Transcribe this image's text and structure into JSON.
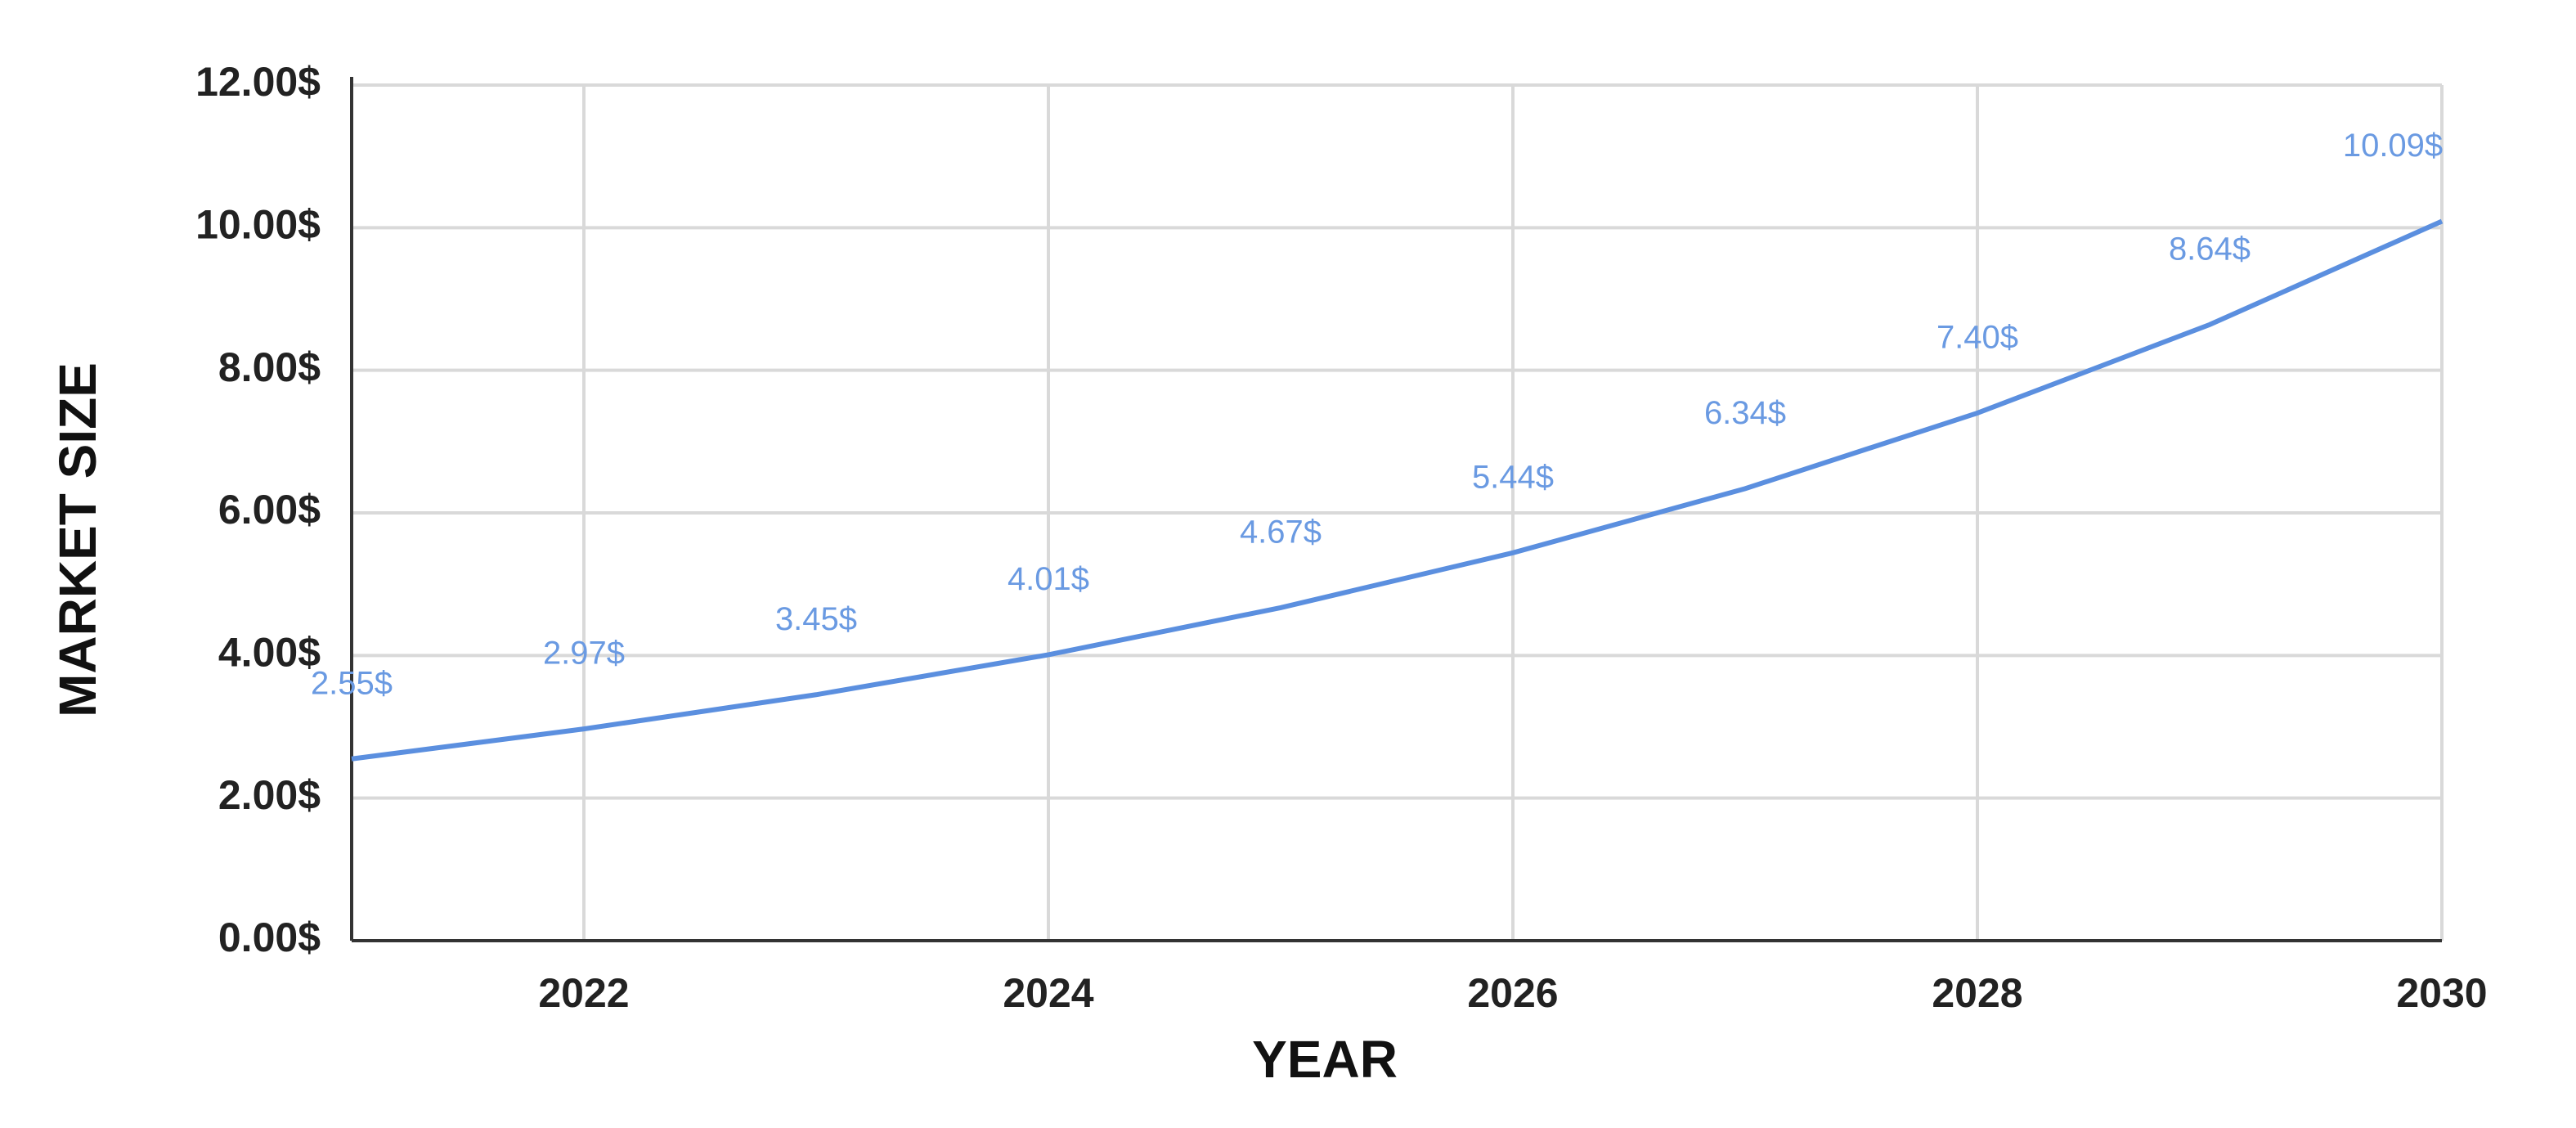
{
  "chart_data": {
    "type": "line",
    "x_label": "YEAR",
    "y_label": "MARKET SIZE",
    "x": [
      2021,
      2022,
      2023,
      2024,
      2025,
      2026,
      2027,
      2028,
      2029,
      2030
    ],
    "series": [
      {
        "color": "#5b8fdf",
        "values": [
          2.55,
          2.97,
          3.45,
          4.01,
          4.67,
          5.44,
          6.34,
          7.4,
          8.64,
          10.09
        ],
        "value_labels": [
          "2.55$",
          "2.97$",
          "3.45$",
          "4.01$",
          "4.67$",
          "5.44$",
          "6.34$",
          "7.40$",
          "8.64$",
          "10.09$"
        ]
      }
    ],
    "xlim": [
      2021,
      2030
    ],
    "xticks": [
      2022,
      2024,
      2026,
      2028,
      2030
    ],
    "ylim": [
      0,
      12
    ],
    "yticks": [
      {
        "value": 0,
        "label": "0.00$"
      },
      {
        "value": 2,
        "label": "2.00$"
      },
      {
        "value": 4,
        "label": "4.00$"
      },
      {
        "value": 6,
        "label": "6.00$"
      },
      {
        "value": 8,
        "label": "8.00$"
      },
      {
        "value": 10,
        "label": "10.00$"
      },
      {
        "value": 12,
        "label": "12.00$"
      }
    ],
    "grid": true
  }
}
